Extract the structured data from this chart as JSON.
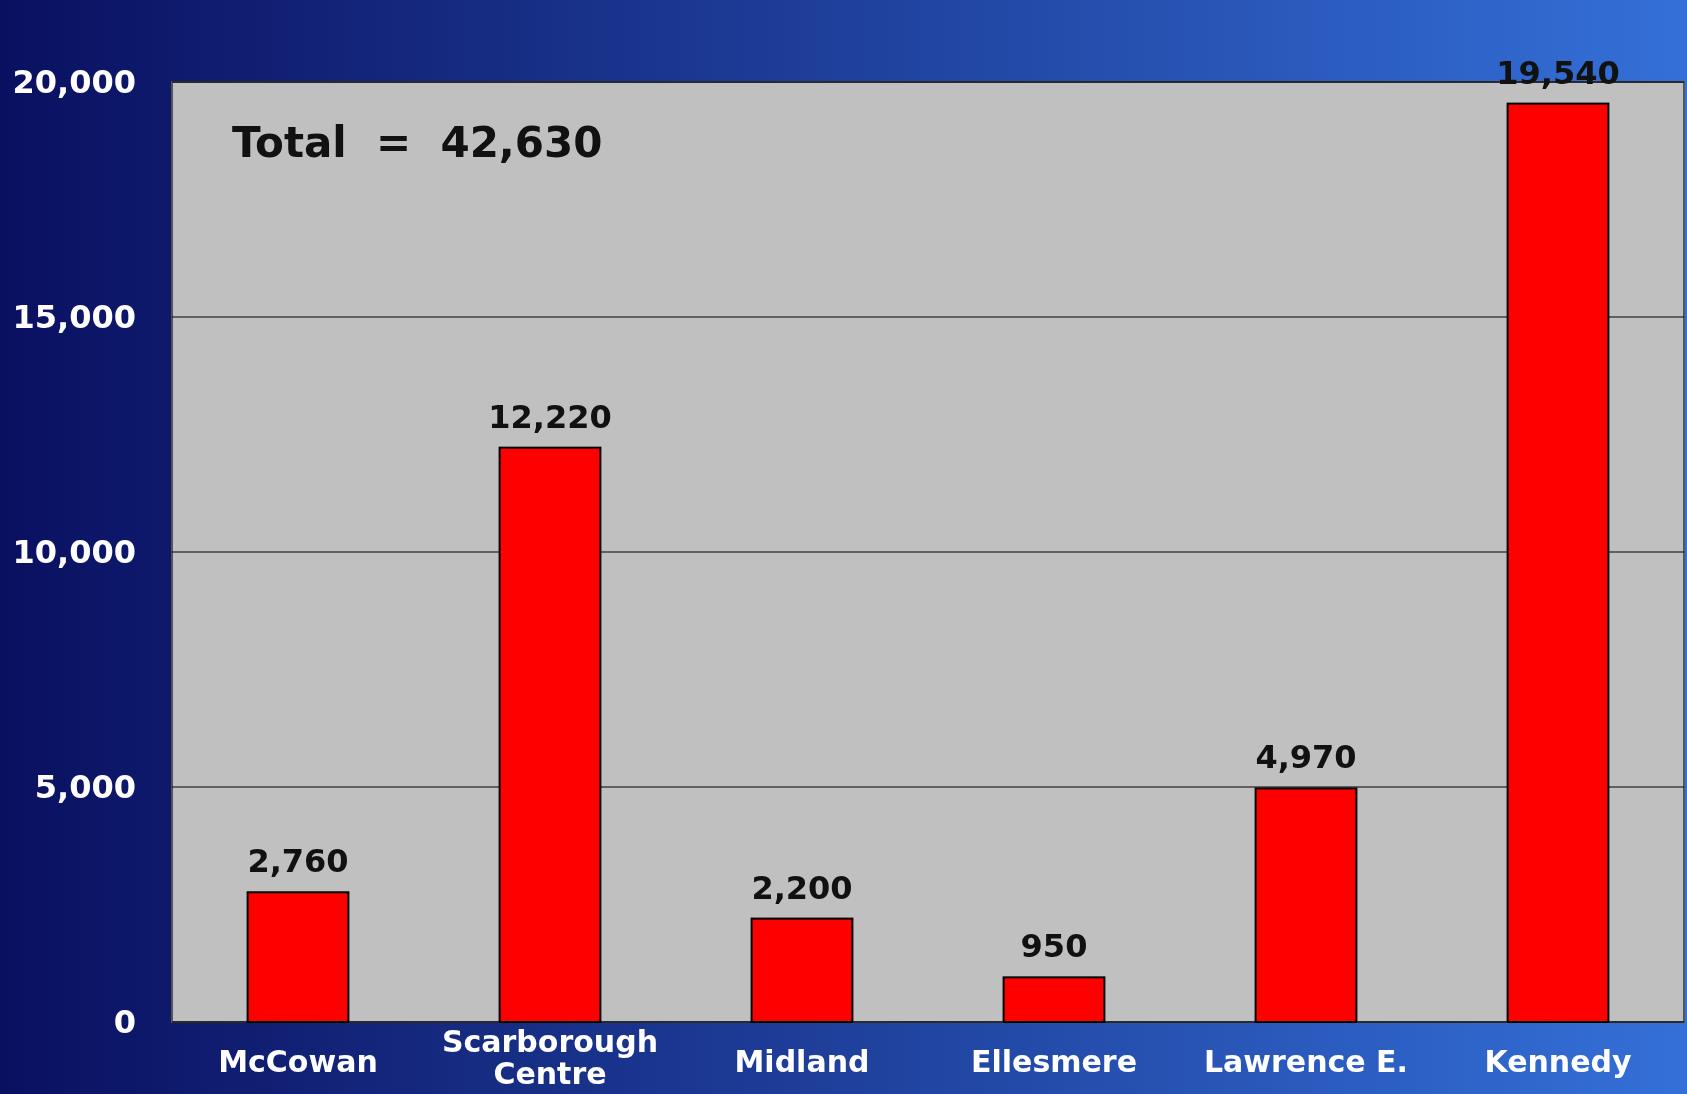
{
  "chart_data": {
    "type": "bar",
    "categories": [
      "McCowan",
      "Scarborough Centre",
      "Midland",
      "Ellesmere",
      "Lawrence E.",
      "Kennedy"
    ],
    "values": [
      2760,
      12220,
      2200,
      950,
      4970,
      19540
    ],
    "color": "#ff0000",
    "ylim": [
      0,
      20000
    ],
    "yticks": [
      {
        "value": 0,
        "label": "0"
      },
      {
        "value": 5000,
        "label": "5,000"
      },
      {
        "value": 10000,
        "label": "10,000"
      },
      {
        "value": 15000,
        "label": "15,000"
      },
      {
        "value": 20000,
        "label": "20,000"
      }
    ],
    "grid": "y",
    "value_labels": [
      "2,760",
      "12,220",
      "2,200",
      "950",
      "4,970",
      "19,540"
    ],
    "annotations": [
      "Total  =  42,630"
    ]
  }
}
